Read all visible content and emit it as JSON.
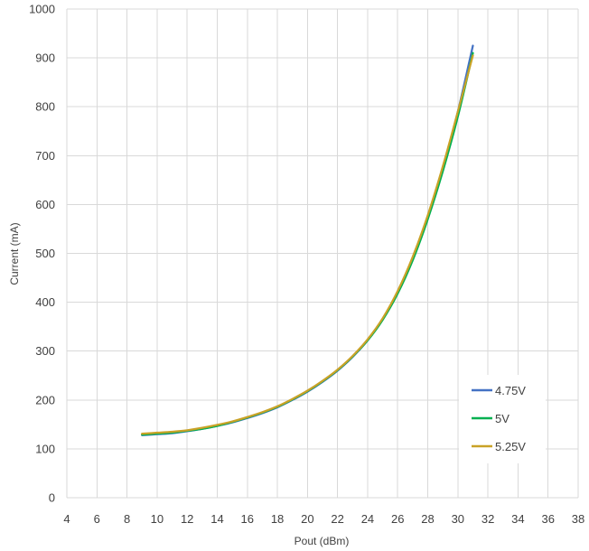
{
  "chart_data": {
    "type": "line",
    "title": "",
    "xlabel": "Pout (dBm)",
    "ylabel": "Current (mA)",
    "xlim": [
      4,
      38
    ],
    "ylim": [
      0,
      1000
    ],
    "x_ticks": [
      "4",
      "6",
      "8",
      "10",
      "12",
      "14",
      "16",
      "18",
      "20",
      "22",
      "24",
      "26",
      "28",
      "30",
      "32",
      "34",
      "36",
      "38"
    ],
    "y_ticks": [
      "0",
      "100",
      "200",
      "300",
      "400",
      "500",
      "600",
      "700",
      "800",
      "900",
      "1000"
    ],
    "grid": true,
    "legend_position": "bottom-right",
    "series": [
      {
        "name": "4.75V",
        "color": "#4472c4",
        "x": [
          9,
          10,
          11,
          12,
          13,
          14,
          15,
          16,
          17,
          18,
          19,
          20,
          21,
          22,
          23,
          24,
          25,
          26,
          27,
          28,
          29,
          30,
          31
        ],
        "y": [
          128,
          130,
          132,
          136,
          141,
          147,
          154,
          163,
          173,
          185,
          200,
          217,
          237,
          260,
          288,
          322,
          365,
          420,
          490,
          575,
          675,
          790,
          925
        ]
      },
      {
        "name": "5V",
        "color": "#00b050",
        "x": [
          9,
          10,
          11,
          12,
          13,
          14,
          15,
          16,
          17,
          18,
          19,
          20,
          21,
          22,
          23,
          24,
          25,
          26,
          27,
          28,
          29,
          30,
          31
        ],
        "y": [
          129,
          131,
          133,
          137,
          141,
          147,
          155,
          164,
          174,
          186,
          201,
          218,
          238,
          261,
          289,
          322,
          364,
          418,
          486,
          570,
          668,
          780,
          910
        ]
      },
      {
        "name": "5.25V",
        "color": "#c9a227",
        "x": [
          9,
          10,
          11,
          12,
          13,
          14,
          15,
          16,
          17,
          18,
          19,
          20,
          21,
          22,
          23,
          24,
          25,
          26,
          27,
          28,
          29,
          30,
          31
        ],
        "y": [
          131,
          133,
          135,
          138,
          143,
          149,
          156,
          165,
          175,
          187,
          202,
          219,
          239,
          262,
          290,
          324,
          367,
          423,
          493,
          578,
          678,
          790,
          905
        ]
      }
    ]
  }
}
